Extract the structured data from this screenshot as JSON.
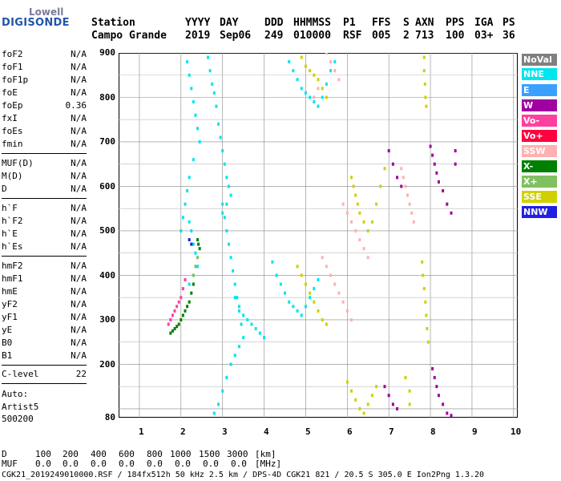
{
  "logo": {
    "top": "Lowell",
    "main": "DIGISONDE"
  },
  "header": {
    "labels": [
      "Station",
      "YYYY",
      "DAY",
      "DDD",
      "HHMMSS",
      "P1",
      "FFS",
      "S",
      "AXN",
      "PPS",
      "IGA",
      "PS"
    ],
    "values": [
      "Campo Grande",
      "2019",
      "Sep06",
      "249",
      "010000",
      "RSF",
      "005",
      "2",
      "713",
      "100",
      "03+",
      "36"
    ]
  },
  "params": [
    {
      "label": "foF2",
      "value": "N/A"
    },
    {
      "label": "foF1",
      "value": "N/A"
    },
    {
      "label": "foF1p",
      "value": "N/A"
    },
    {
      "label": "foE",
      "value": "N/A"
    },
    {
      "label": "foEp",
      "value": "0.36"
    },
    {
      "label": "fxI",
      "value": "N/A"
    },
    {
      "label": "foEs",
      "value": "N/A"
    },
    {
      "label": "fmin",
      "value": "N/A"
    },
    {
      "label": "MUF(D)",
      "value": "N/A"
    },
    {
      "label": "M(D)",
      "value": "N/A"
    },
    {
      "label": "D",
      "value": "N/A"
    },
    {
      "label": "h`F",
      "value": "N/A"
    },
    {
      "label": "h`F2",
      "value": "N/A"
    },
    {
      "label": "h`E",
      "value": "N/A"
    },
    {
      "label": "h`Es",
      "value": "N/A"
    },
    {
      "label": "hmF2",
      "value": "N/A"
    },
    {
      "label": "hmF1",
      "value": "N/A"
    },
    {
      "label": "hmE",
      "value": "N/A"
    },
    {
      "label": "yF2",
      "value": "N/A"
    },
    {
      "label": "yF1",
      "value": "N/A"
    },
    {
      "label": "yE",
      "value": "N/A"
    },
    {
      "label": "B0",
      "value": "N/A"
    },
    {
      "label": "B1",
      "value": "N/A"
    },
    {
      "label": "C-level",
      "value": "22"
    }
  ],
  "auto": {
    "line1": "Auto:",
    "line2": "Artist5",
    "line3": "500200"
  },
  "legend": [
    {
      "label": "NoVal",
      "color": "#808080"
    },
    {
      "label": "NNE",
      "color": "#00e5ee"
    },
    {
      "label": "E",
      "color": "#3aa0ff"
    },
    {
      "label": "W",
      "color": "#a000a0"
    },
    {
      "label": "Vo-",
      "color": "#ff40a0"
    },
    {
      "label": "Vo+",
      "color": "#ff0040"
    },
    {
      "label": "SSW",
      "color": "#ffb0b0"
    },
    {
      "label": "X-",
      "color": "#008000"
    },
    {
      "label": "X+",
      "color": "#80c060"
    },
    {
      "label": "SSE",
      "color": "#d0d000"
    },
    {
      "label": "NNW",
      "color": "#2020e0"
    }
  ],
  "chart_data": {
    "type": "scatter",
    "x_ticks": [
      "1",
      "2",
      "3",
      "4",
      "5",
      "6",
      "7",
      "8",
      "9",
      "10"
    ],
    "y_ticks": [
      "900",
      "800",
      "700",
      "600",
      "500",
      "400",
      "300",
      "200",
      "80"
    ],
    "xlim": [
      0.5,
      10.1
    ],
    "ylim": [
      80,
      900
    ],
    "grid": true,
    "echo_traces": [
      {
        "color": "NNE",
        "points": [
          [
            2.65,
            890
          ],
          [
            2.7,
            860
          ],
          [
            2.75,
            830
          ],
          [
            2.8,
            810
          ],
          [
            2.85,
            780
          ],
          [
            2.9,
            740
          ],
          [
            2.95,
            710
          ],
          [
            3.0,
            680
          ],
          [
            3.05,
            650
          ],
          [
            3.1,
            620
          ],
          [
            3.15,
            600
          ],
          [
            3.2,
            580
          ],
          [
            3.1,
            560
          ],
          [
            3.0,
            540
          ]
        ]
      },
      {
        "color": "NNE",
        "points": [
          [
            2.15,
            880
          ],
          [
            2.2,
            850
          ],
          [
            2.25,
            820
          ],
          [
            2.3,
            790
          ],
          [
            2.35,
            760
          ],
          [
            2.4,
            730
          ],
          [
            2.45,
            700
          ],
          [
            2.3,
            660
          ],
          [
            2.2,
            620
          ],
          [
            2.15,
            590
          ],
          [
            2.1,
            560
          ],
          [
            2.05,
            530
          ],
          [
            2.0,
            500
          ]
        ]
      },
      {
        "color": "NNE",
        "points": [
          [
            4.6,
            880
          ],
          [
            4.7,
            860
          ],
          [
            4.8,
            840
          ],
          [
            4.9,
            820
          ],
          [
            5.0,
            810
          ],
          [
            5.1,
            800
          ],
          [
            5.2,
            790
          ],
          [
            5.3,
            780
          ],
          [
            5.4,
            800
          ],
          [
            5.5,
            830
          ],
          [
            5.6,
            860
          ],
          [
            5.7,
            880
          ]
        ]
      },
      {
        "color": "NNE",
        "points": [
          [
            4.2,
            430
          ],
          [
            4.3,
            400
          ],
          [
            4.4,
            380
          ],
          [
            4.5,
            360
          ],
          [
            4.6,
            340
          ],
          [
            4.7,
            330
          ],
          [
            4.8,
            320
          ],
          [
            4.9,
            310
          ],
          [
            5.0,
            330
          ],
          [
            5.1,
            350
          ],
          [
            5.2,
            370
          ],
          [
            5.3,
            390
          ]
        ]
      },
      {
        "color": "NNE",
        "points": [
          [
            3.3,
            350
          ],
          [
            3.4,
            330
          ],
          [
            3.5,
            310
          ],
          [
            3.6,
            300
          ],
          [
            3.7,
            290
          ],
          [
            3.8,
            280
          ],
          [
            3.9,
            270
          ],
          [
            4.0,
            260
          ],
          [
            3.4,
            240
          ],
          [
            3.3,
            220
          ],
          [
            3.2,
            200
          ],
          [
            3.1,
            170
          ],
          [
            3.0,
            140
          ],
          [
            2.9,
            110
          ],
          [
            2.8,
            90
          ]
        ]
      },
      {
        "color": "NNE",
        "points": [
          [
            2.2,
            520
          ],
          [
            2.25,
            500
          ],
          [
            2.3,
            470
          ],
          [
            2.35,
            450
          ],
          [
            2.4,
            420
          ],
          [
            2.3,
            400
          ],
          [
            2.2,
            380
          ]
        ]
      },
      {
        "color": "NNE",
        "points": [
          [
            3.0,
            560
          ],
          [
            3.05,
            530
          ],
          [
            3.1,
            500
          ],
          [
            3.15,
            470
          ],
          [
            3.2,
            440
          ],
          [
            3.25,
            410
          ],
          [
            3.3,
            380
          ],
          [
            3.35,
            350
          ],
          [
            3.4,
            320
          ],
          [
            3.45,
            290
          ],
          [
            3.5,
            260
          ]
        ]
      },
      {
        "color": "SSE",
        "points": [
          [
            7.85,
            890
          ],
          [
            7.85,
            860
          ],
          [
            7.87,
            830
          ],
          [
            7.88,
            800
          ],
          [
            7.9,
            780
          ]
        ]
      },
      {
        "color": "SSE",
        "points": [
          [
            7.8,
            430
          ],
          [
            7.82,
            400
          ],
          [
            7.85,
            370
          ],
          [
            7.88,
            340
          ],
          [
            7.9,
            310
          ],
          [
            7.92,
            280
          ],
          [
            7.95,
            250
          ]
        ]
      },
      {
        "color": "SSE",
        "points": [
          [
            6.1,
            620
          ],
          [
            6.15,
            600
          ],
          [
            6.2,
            580
          ],
          [
            6.25,
            560
          ],
          [
            6.3,
            540
          ],
          [
            6.4,
            520
          ],
          [
            6.5,
            500
          ],
          [
            6.6,
            520
          ],
          [
            6.7,
            560
          ],
          [
            6.8,
            600
          ],
          [
            6.9,
            640
          ]
        ]
      },
      {
        "color": "SSE",
        "points": [
          [
            4.9,
            890
          ],
          [
            5.0,
            870
          ],
          [
            5.1,
            860
          ],
          [
            5.2,
            850
          ],
          [
            5.3,
            840
          ],
          [
            5.4,
            820
          ],
          [
            5.5,
            800
          ]
        ]
      },
      {
        "color": "SSE",
        "points": [
          [
            4.8,
            420
          ],
          [
            4.9,
            400
          ],
          [
            5.0,
            380
          ],
          [
            5.1,
            360
          ],
          [
            5.2,
            340
          ],
          [
            5.3,
            320
          ],
          [
            5.4,
            300
          ],
          [
            5.5,
            290
          ]
        ]
      },
      {
        "color": "SSE",
        "points": [
          [
            6.0,
            160
          ],
          [
            6.1,
            140
          ],
          [
            6.2,
            120
          ],
          [
            6.3,
            100
          ],
          [
            6.4,
            90
          ],
          [
            6.5,
            110
          ],
          [
            6.6,
            130
          ],
          [
            6.7,
            150
          ],
          [
            7.4,
            170
          ],
          [
            7.5,
            140
          ],
          [
            7.5,
            110
          ]
        ]
      },
      {
        "color": "SSW",
        "points": [
          [
            5.4,
            440
          ],
          [
            5.5,
            420
          ],
          [
            5.6,
            400
          ],
          [
            5.7,
            380
          ],
          [
            5.8,
            360
          ],
          [
            5.9,
            340
          ],
          [
            6.0,
            320
          ],
          [
            6.1,
            300
          ]
        ]
      },
      {
        "color": "SSW",
        "points": [
          [
            5.9,
            560
          ],
          [
            6.0,
            540
          ],
          [
            6.1,
            520
          ],
          [
            6.2,
            500
          ],
          [
            6.3,
            480
          ],
          [
            6.4,
            460
          ],
          [
            6.5,
            440
          ]
        ]
      },
      {
        "color": "SSW",
        "points": [
          [
            7.3,
            640
          ],
          [
            7.35,
            620
          ],
          [
            7.4,
            600
          ],
          [
            7.45,
            580
          ],
          [
            7.5,
            560
          ],
          [
            7.55,
            540
          ],
          [
            7.6,
            520
          ]
        ]
      },
      {
        "color": "SSW",
        "points": [
          [
            5.5,
            900
          ],
          [
            5.6,
            880
          ],
          [
            5.7,
            860
          ],
          [
            5.8,
            840
          ],
          [
            5.3,
            820
          ],
          [
            5.2,
            800
          ]
        ]
      },
      {
        "color": "W",
        "points": [
          [
            8.0,
            690
          ],
          [
            8.05,
            670
          ],
          [
            8.1,
            650
          ],
          [
            8.15,
            630
          ],
          [
            8.2,
            610
          ],
          [
            8.3,
            590
          ],
          [
            8.4,
            560
          ],
          [
            8.5,
            540
          ]
        ]
      },
      {
        "color": "W",
        "points": [
          [
            7.0,
            680
          ],
          [
            7.1,
            650
          ],
          [
            7.2,
            620
          ],
          [
            7.3,
            600
          ],
          [
            8.6,
            680
          ],
          [
            8.6,
            650
          ]
        ]
      },
      {
        "color": "W",
        "points": [
          [
            8.05,
            190
          ],
          [
            8.1,
            170
          ],
          [
            8.15,
            150
          ],
          [
            8.2,
            130
          ],
          [
            8.3,
            110
          ],
          [
            8.4,
            90
          ],
          [
            8.5,
            85
          ]
        ]
      },
      {
        "color": "W",
        "points": [
          [
            6.9,
            150
          ],
          [
            7.0,
            130
          ],
          [
            7.1,
            110
          ],
          [
            7.2,
            100
          ]
        ]
      },
      {
        "color": "Vo-",
        "points": [
          [
            1.7,
            290
          ],
          [
            1.75,
            300
          ],
          [
            1.8,
            310
          ],
          [
            1.85,
            320
          ],
          [
            1.9,
            330
          ],
          [
            1.95,
            340
          ],
          [
            2.0,
            350
          ],
          [
            2.05,
            370
          ],
          [
            2.1,
            390
          ]
        ]
      },
      {
        "color": "X-",
        "points": [
          [
            1.75,
            270
          ],
          [
            1.8,
            275
          ],
          [
            1.85,
            280
          ],
          [
            1.9,
            285
          ],
          [
            1.95,
            290
          ],
          [
            2.0,
            300
          ],
          [
            2.05,
            310
          ],
          [
            2.1,
            320
          ],
          [
            2.15,
            330
          ],
          [
            2.2,
            340
          ],
          [
            2.25,
            360
          ],
          [
            2.3,
            380
          ]
        ]
      },
      {
        "color": "X-",
        "points": [
          [
            2.4,
            480
          ],
          [
            2.42,
            470
          ],
          [
            2.45,
            460
          ]
        ]
      },
      {
        "color": "X+",
        "points": [
          [
            2.3,
            400
          ],
          [
            2.35,
            420
          ],
          [
            2.4,
            440
          ]
        ]
      },
      {
        "color": "NNW",
        "points": [
          [
            2.2,
            480
          ],
          [
            2.25,
            470
          ]
        ]
      }
    ]
  },
  "bottom": {
    "d_label": "D",
    "d_values": [
      "100",
      "200",
      "400",
      "600",
      "800",
      "1000",
      "1500",
      "3000"
    ],
    "d_unit": "[km]",
    "muf_label": "MUF",
    "muf_values": [
      "0.0",
      "0.0",
      "0.0",
      "0.0",
      "0.0",
      "0.0",
      "0.0",
      "0.0"
    ],
    "muf_unit": "[MHz]",
    "footer": "CGK21_2019249010000.RSF / 184fx512h 50 kHz 2.5 km / DPS-4D CGK21 821 / 20.5 S 305.0 E Ion2Png 1.3.20"
  }
}
